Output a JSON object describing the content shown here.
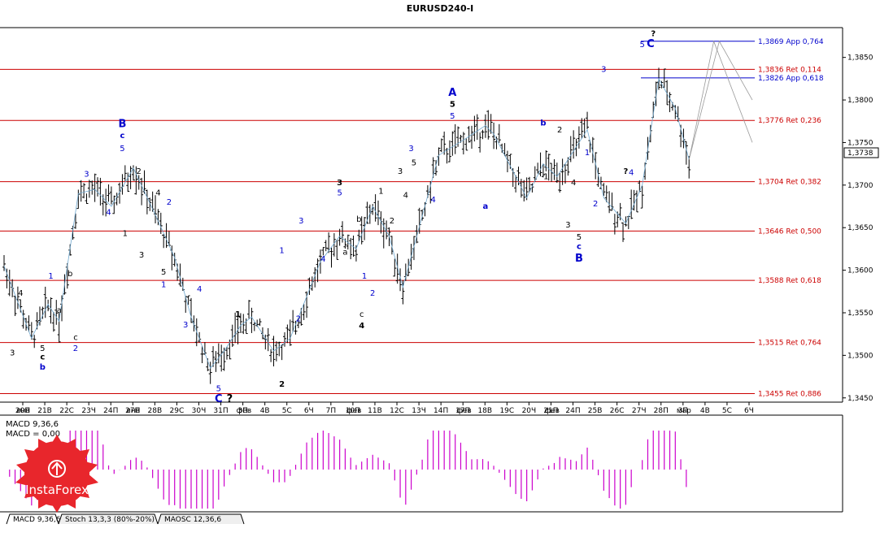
{
  "chart_data": {
    "type": "candlestick",
    "title": "EURUSD240-I",
    "ylim": [
      1.3445,
      1.3885
    ],
    "y_ticks": [
      "1,3850",
      "1,3800",
      "1,3750",
      "1,3700",
      "1,3650",
      "1,3600",
      "1,3550",
      "1,3500",
      "1,3450"
    ],
    "current_price": "1,3738",
    "x_ticks": [
      "20П",
      "21В",
      "22С",
      "23Ч",
      "24П",
      "27П",
      "28В",
      "29С",
      "30Ч",
      "31П",
      "3П",
      "4В",
      "5С",
      "6Ч",
      "7П",
      "10П",
      "11В",
      "12С",
      "13Ч",
      "14П",
      "17П",
      "18В",
      "19С",
      "20Ч",
      "21П",
      "24П",
      "25В",
      "26С",
      "27Ч",
      "28П",
      "3П",
      "4В",
      "5С",
      "6Ч"
    ],
    "month_labels": [
      "янв",
      "янв",
      "фев",
      "фев",
      "фев",
      "фев",
      "мар"
    ],
    "levels": [
      {
        "price": 1.3869,
        "label": "1,3869 App 0,764",
        "color": "#0000cc"
      },
      {
        "price": 1.3836,
        "label": "1,3836 Ret 0,114",
        "color": "#cc0000"
      },
      {
        "price": 1.3826,
        "label": "1,3826 App 0,618",
        "color": "#0000cc"
      },
      {
        "price": 1.3776,
        "label": "1,3776 Ret 0,236",
        "color": "#cc0000"
      },
      {
        "price": 1.3704,
        "label": "1,3704 Ret 0,382",
        "color": "#cc0000"
      },
      {
        "price": 1.3646,
        "label": "1,3646 Ret 0,500",
        "color": "#cc0000"
      },
      {
        "price": 1.3588,
        "label": "1,3588 Ret 0,618",
        "color": "#cc0000"
      },
      {
        "price": 1.3515,
        "label": "1,3515 Ret 0,764",
        "color": "#cc0000"
      },
      {
        "price": 1.3455,
        "label": "1,3455 Ret 0,886",
        "color": "#cc0000"
      }
    ],
    "wave_path": [
      {
        "i": 0,
        "p": 1.3605
      },
      {
        "i": 10,
        "p": 1.352
      },
      {
        "i": 16,
        "p": 1.356
      },
      {
        "i": 20,
        "p": 1.354
      },
      {
        "i": 27,
        "p": 1.369
      },
      {
        "i": 33,
        "p": 1.3695
      },
      {
        "i": 39,
        "p": 1.3675
      },
      {
        "i": 47,
        "p": 1.372
      },
      {
        "i": 55,
        "p": 1.3665
      },
      {
        "i": 62,
        "p": 1.3615
      },
      {
        "i": 68,
        "p": 1.3545
      },
      {
        "i": 75,
        "p": 1.3485
      },
      {
        "i": 80,
        "p": 1.3505
      },
      {
        "i": 86,
        "p": 1.3535
      },
      {
        "i": 90,
        "p": 1.3545
      },
      {
        "i": 98,
        "p": 1.3505
      },
      {
        "i": 104,
        "p": 1.352
      },
      {
        "i": 115,
        "p": 1.361
      },
      {
        "i": 122,
        "p": 1.364
      },
      {
        "i": 128,
        "p": 1.3625
      },
      {
        "i": 134,
        "p": 1.3675
      },
      {
        "i": 140,
        "p": 1.364
      },
      {
        "i": 145,
        "p": 1.358
      },
      {
        "i": 158,
        "p": 1.3735
      },
      {
        "i": 168,
        "p": 1.3755
      },
      {
        "i": 175,
        "p": 1.377
      },
      {
        "i": 178,
        "p": 1.376
      },
      {
        "i": 190,
        "p": 1.3685
      },
      {
        "i": 196,
        "p": 1.3725
      },
      {
        "i": 201,
        "p": 1.371
      },
      {
        "i": 212,
        "p": 1.3765
      },
      {
        "i": 218,
        "p": 1.3685
      },
      {
        "i": 226,
        "p": 1.3655
      },
      {
        "i": 232,
        "p": 1.37
      },
      {
        "i": 238,
        "p": 1.3825
      },
      {
        "i": 244,
        "p": 1.379
      },
      {
        "i": 249,
        "p": 1.373
      }
    ],
    "projection": [
      {
        "i": 249,
        "p": 1.373
      },
      {
        "i": 260,
        "p": 1.3869
      },
      {
        "i": 272,
        "p": 1.38
      }
    ],
    "projection2": [
      {
        "i": 249,
        "p": 1.373
      },
      {
        "i": 258,
        "p": 1.3869
      },
      {
        "i": 272,
        "p": 1.375
      }
    ],
    "wave_labels": [
      {
        "i": 6,
        "p": 1.357,
        "t": "4",
        "c": "#000000",
        "s": "wv"
      },
      {
        "i": 3,
        "p": 1.35,
        "t": "3",
        "c": "#000000",
        "s": "wv"
      },
      {
        "i": 17,
        "p": 1.359,
        "t": "1",
        "c": "#0000cc",
        "s": "wv"
      },
      {
        "i": 14,
        "p": 1.3505,
        "t": "5",
        "c": "#000000",
        "s": "wv"
      },
      {
        "i": 14,
        "p": 1.3495,
        "t": "c",
        "c": "#000000",
        "s": "wvb"
      },
      {
        "i": 14,
        "p": 1.3483,
        "t": "b",
        "c": "#0000cc",
        "s": "wvb"
      },
      {
        "i": 20,
        "p": 1.355,
        "t": "a",
        "c": "#000000",
        "s": "wv"
      },
      {
        "i": 24,
        "p": 1.3593,
        "t": "b",
        "c": "#000000",
        "s": "wv"
      },
      {
        "i": 26,
        "p": 1.3518,
        "t": "c",
        "c": "#000000",
        "s": "wv"
      },
      {
        "i": 26,
        "p": 1.3505,
        "t": "2",
        "c": "#0000cc",
        "s": "wv"
      },
      {
        "i": 30,
        "p": 1.371,
        "t": "3",
        "c": "#0000cc",
        "s": "wv"
      },
      {
        "i": 38,
        "p": 1.3665,
        "t": "4",
        "c": "#0000cc",
        "s": "wv"
      },
      {
        "i": 43,
        "p": 1.3768,
        "t": "B",
        "c": "#0000cc",
        "s": "wvL"
      },
      {
        "i": 43,
        "p": 1.3755,
        "t": "c",
        "c": "#0000cc",
        "s": "wvb"
      },
      {
        "i": 43,
        "p": 1.374,
        "t": "5",
        "c": "#0000cc",
        "s": "wv"
      },
      {
        "i": 44,
        "p": 1.364,
        "t": "1",
        "c": "#000000",
        "s": "wv"
      },
      {
        "i": 49,
        "p": 1.3713,
        "t": "2",
        "c": "#000000",
        "s": "wv"
      },
      {
        "i": 50,
        "p": 1.3615,
        "t": "3",
        "c": "#000000",
        "s": "wv"
      },
      {
        "i": 56,
        "p": 1.3688,
        "t": "4",
        "c": "#000000",
        "s": "wv"
      },
      {
        "i": 60,
        "p": 1.3677,
        "t": "2",
        "c": "#0000cc",
        "s": "wv"
      },
      {
        "i": 58,
        "p": 1.3595,
        "t": "5",
        "c": "#000000",
        "s": "wv"
      },
      {
        "i": 58,
        "p": 1.358,
        "t": "1",
        "c": "#0000cc",
        "s": "wv"
      },
      {
        "i": 66,
        "p": 1.3533,
        "t": "3",
        "c": "#0000cc",
        "s": "wv"
      },
      {
        "i": 71,
        "p": 1.3575,
        "t": "4",
        "c": "#0000cc",
        "s": "wv"
      },
      {
        "i": 78,
        "p": 1.3458,
        "t": "5",
        "c": "#0000cc",
        "s": "wv"
      },
      {
        "i": 78,
        "p": 1.3445,
        "t": "C",
        "c": "#0000cc",
        "s": "wvL"
      },
      {
        "i": 82,
        "p": 1.3445,
        "t": "?",
        "c": "#000000",
        "s": "wvL"
      },
      {
        "i": 85,
        "p": 1.3545,
        "t": "1",
        "c": "#000000",
        "s": "wvb"
      },
      {
        "i": 101,
        "p": 1.3463,
        "t": "2",
        "c": "#000000",
        "s": "wvb"
      },
      {
        "i": 101,
        "p": 1.362,
        "t": "1",
        "c": "#0000cc",
        "s": "wv"
      },
      {
        "i": 107,
        "p": 1.354,
        "t": "2",
        "c": "#0000cc",
        "s": "wv"
      },
      {
        "i": 108,
        "p": 1.3655,
        "t": "3",
        "c": "#0000cc",
        "s": "wv"
      },
      {
        "i": 116,
        "p": 1.361,
        "t": "4",
        "c": "#0000cc",
        "s": "wv"
      },
      {
        "i": 122,
        "p": 1.37,
        "t": "3",
        "c": "#000000",
        "s": "wvb"
      },
      {
        "i": 122,
        "p": 1.3688,
        "t": "5",
        "c": "#0000cc",
        "s": "wv"
      },
      {
        "i": 124,
        "p": 1.3618,
        "t": "a",
        "c": "#000000",
        "s": "wv"
      },
      {
        "i": 129,
        "p": 1.3657,
        "t": "b",
        "c": "#000000",
        "s": "wv"
      },
      {
        "i": 131,
        "p": 1.359,
        "t": "1",
        "c": "#0000cc",
        "s": "wv"
      },
      {
        "i": 130,
        "p": 1.3545,
        "t": "c",
        "c": "#000000",
        "s": "wv"
      },
      {
        "i": 130,
        "p": 1.3532,
        "t": "4",
        "c": "#000000",
        "s": "wvb"
      },
      {
        "i": 134,
        "p": 1.357,
        "t": "2",
        "c": "#0000cc",
        "s": "wv"
      },
      {
        "i": 137,
        "p": 1.369,
        "t": "1",
        "c": "#000000",
        "s": "wv"
      },
      {
        "i": 141,
        "p": 1.3655,
        "t": "2",
        "c": "#000000",
        "s": "wv"
      },
      {
        "i": 144,
        "p": 1.3713,
        "t": "3",
        "c": "#000000",
        "s": "wv"
      },
      {
        "i": 146,
        "p": 1.3685,
        "t": "4",
        "c": "#000000",
        "s": "wv"
      },
      {
        "i": 148,
        "p": 1.374,
        "t": "3",
        "c": "#0000cc",
        "s": "wv"
      },
      {
        "i": 149,
        "p": 1.3723,
        "t": "5",
        "c": "#000000",
        "s": "wv"
      },
      {
        "i": 156,
        "p": 1.368,
        "t": "4",
        "c": "#0000cc",
        "s": "wv"
      },
      {
        "i": 163,
        "p": 1.3805,
        "t": "A",
        "c": "#0000cc",
        "s": "wvL"
      },
      {
        "i": 163,
        "p": 1.3792,
        "t": "5",
        "c": "#000000",
        "s": "wvb"
      },
      {
        "i": 163,
        "p": 1.3778,
        "t": "5",
        "c": "#0000cc",
        "s": "wv"
      },
      {
        "i": 175,
        "p": 1.3672,
        "t": "a",
        "c": "#0000cc",
        "s": "wvb"
      },
      {
        "i": 196,
        "p": 1.377,
        "t": "b",
        "c": "#0000cc",
        "s": "wvb"
      },
      {
        "i": 202,
        "p": 1.3762,
        "t": "2",
        "c": "#000000",
        "s": "wv"
      },
      {
        "i": 197,
        "p": 1.3707,
        "t": "1",
        "c": "#000000",
        "s": "wv"
      },
      {
        "i": 207,
        "p": 1.37,
        "t": "4",
        "c": "#000000",
        "s": "wv"
      },
      {
        "i": 205,
        "p": 1.365,
        "t": "3",
        "c": "#000000",
        "s": "wv"
      },
      {
        "i": 209,
        "p": 1.3636,
        "t": "5",
        "c": "#000000",
        "s": "wv"
      },
      {
        "i": 209,
        "p": 1.3625,
        "t": "c",
        "c": "#0000cc",
        "s": "wvb"
      },
      {
        "i": 209,
        "p": 1.361,
        "t": "B",
        "c": "#0000cc",
        "s": "wvL"
      },
      {
        "i": 212,
        "p": 1.3735,
        "t": "1",
        "c": "#0000cc",
        "s": "wv"
      },
      {
        "i": 215,
        "p": 1.3675,
        "t": "2",
        "c": "#0000cc",
        "s": "wv"
      },
      {
        "i": 218,
        "p": 1.3833,
        "t": "3",
        "c": "#0000cc",
        "s": "wv"
      },
      {
        "i": 226,
        "p": 1.3713,
        "t": "?",
        "c": "#000000",
        "s": "wvb"
      },
      {
        "i": 228,
        "p": 1.3712,
        "t": "4",
        "c": "#0000cc",
        "s": "wv"
      },
      {
        "i": 232,
        "p": 1.3862,
        "t": "5",
        "c": "#0000cc",
        "s": "wv"
      },
      {
        "i": 235,
        "p": 1.3862,
        "t": "C",
        "c": "#0000cc",
        "s": "wvL"
      },
      {
        "i": 236,
        "p": 1.3875,
        "t": "?",
        "c": "#000000",
        "s": "wvb"
      }
    ]
  },
  "indicator": {
    "name": "MACD 9,36,6",
    "value_label": "MACD = 0,00",
    "tabs": [
      "MACD 9,36,6",
      "Stoch 13,3,3 (80%-20%)",
      "MAOSC 12,36,6"
    ]
  },
  "logo": {
    "text": "InstaForex"
  },
  "colors": {
    "red_level": "#cc0000",
    "blue_level": "#0000cc",
    "macd_bar": "#cc00cc",
    "wave_line": "#6fa8d0"
  }
}
